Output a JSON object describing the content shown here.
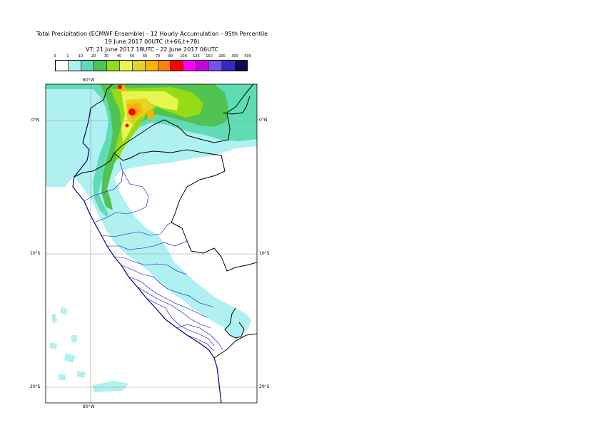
{
  "title": {
    "line1": "Total Precipitation (ECMWF Ensemble) - 12 Hourly Accumulation - 95th Percentile",
    "line2": "19 June 2017 00UTC (t+66,t+78)",
    "line3": "VT: 21 June 2017 18UTC - 22 June 2017 06UTC"
  },
  "legend": {
    "labels": [
      "0",
      "1",
      "10",
      "20",
      "30",
      "40",
      "50",
      "60",
      "70",
      "80",
      "100",
      "125",
      "150",
      "200",
      "300",
      "500"
    ],
    "colors": [
      "#ffffff",
      "#aff0f0",
      "#5fdcb4",
      "#50c350",
      "#96dc14",
      "#e6f550",
      "#e6d228",
      "#fab400",
      "#ff820a",
      "#ff0000",
      "#ff00ff",
      "#c800dc",
      "#7850f0",
      "#3228c8",
      "#0a0a5a"
    ]
  },
  "axes": {
    "lon_top": "80°W",
    "lon_bottom": "80°W",
    "lat_0_left": "0°N",
    "lat_0_right": "0°N",
    "lat_10_left": "10°S",
    "lat_10_right": "10°S",
    "lat_20_left": "20°S",
    "lat_20_right": "20°S"
  }
}
